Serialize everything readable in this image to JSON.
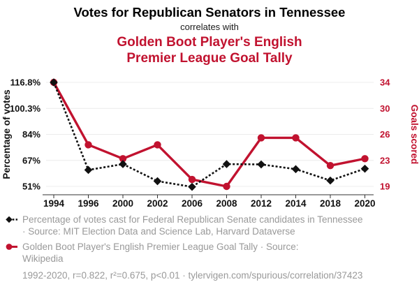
{
  "colors": {
    "accent_red": "#c1122f",
    "series_black": "#111111",
    "text_black": "#111111",
    "legend_gray": "#999999",
    "gridline": "#ececec",
    "axis": "#333333",
    "background": "#ffffff"
  },
  "chart_data": {
    "type": "line",
    "title": "Votes for Republican Senators in Tennessee",
    "subtitle": "correlates with",
    "title2": "Golden Boot Player's English Premier League Goal Tally",
    "title2_lines": [
      "Golden Boot Player's English",
      "Premier League Goal Tally"
    ],
    "categories": [
      "1994",
      "1996",
      "2000",
      "2002",
      "2006",
      "2008",
      "2012",
      "2014",
      "2018",
      "2020"
    ],
    "series": [
      {
        "name": "Percentage of votes cast for Federal Republican Senate candidates in Tennessee",
        "axis": "left",
        "style": "dotted-line-diamond-markers",
        "color": "#111111",
        "values": [
          116.8,
          61.4,
          65.1,
          54.3,
          50.7,
          65.1,
          64.9,
          61.9,
          54.7,
          62.2
        ]
      },
      {
        "name": "Golden Boot Player's English Premier League Goal Tally",
        "axis": "right",
        "style": "solid-line-circle-markers",
        "color": "#c1122f",
        "values": [
          34,
          25,
          23,
          25,
          20,
          19,
          26,
          26,
          22,
          23
        ]
      }
    ],
    "left_axis": {
      "label": "Percentage of votes",
      "tick_labels": [
        "116.8%",
        "100.3%",
        "84%",
        "67%",
        "51%"
      ],
      "min": 51,
      "max": 116.8
    },
    "right_axis": {
      "label": "Goals scored",
      "tick_labels": [
        "34",
        "30",
        "26",
        "23",
        "19"
      ],
      "min": 19,
      "max": 34
    },
    "grid": "horizontal-only",
    "legend_position": "bottom",
    "legend": {
      "items": [
        {
          "series": "votes",
          "lines": [
            "Percentage of votes cast for Federal Republican Senate candidates in Tennessee",
            "· Source: MIT Election Data and Science Lab, Harvard Dataverse"
          ]
        },
        {
          "series": "goals",
          "lines": [
            "Golden Boot Player's English Premier League Goal Tally · Source:",
            "Wikipedia"
          ]
        }
      ]
    }
  },
  "footer": {
    "text": "1992-2020, r=0.822, r²=0.675, p<0.01 · tylervigen.com/spurious/correlation/37423"
  }
}
